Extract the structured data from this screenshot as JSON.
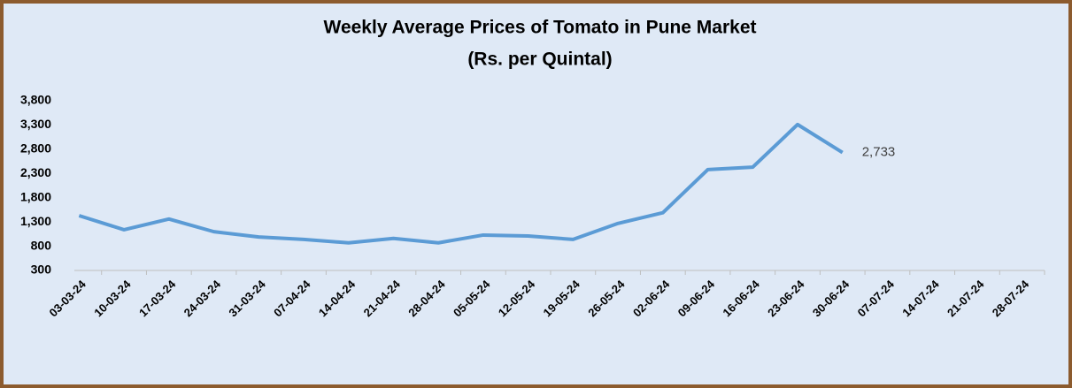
{
  "chart_data": {
    "type": "line",
    "title": "Weekly Average Prices of Tomato in Pune Market",
    "subtitle": "(Rs. per Quintal)",
    "categories": [
      "03-03-24",
      "10-03-24",
      "17-03-24",
      "24-03-24",
      "31-03-24",
      "07-04-24",
      "14-04-24",
      "21-04-24",
      "28-04-24",
      "05-05-24",
      "12-05-24",
      "19-05-24",
      "26-05-24",
      "02-06-24",
      "09-06-24",
      "16-06-24",
      "23-06-24",
      "30-06-24",
      "07-07-24",
      "14-07-24",
      "21-07-24",
      "28-07-24"
    ],
    "series": [
      {
        "name": "Tomato",
        "color": "#5b9bd5",
        "values": [
          1430,
          1140,
          1360,
          1100,
          990,
          940,
          870,
          960,
          870,
          1030,
          1010,
          940,
          1270,
          1490,
          2380,
          2430,
          3310,
          2733,
          null,
          null,
          null,
          null
        ],
        "value_labels": [
          null,
          null,
          null,
          null,
          null,
          null,
          null,
          null,
          null,
          null,
          null,
          null,
          null,
          null,
          null,
          null,
          null,
          "2,733",
          null,
          null,
          null,
          null
        ]
      }
    ],
    "ylim": [
      300,
      3800
    ],
    "yticks": [
      300,
      800,
      {
        "value": 1300,
        "label": "1,300"
      },
      {
        "value": 1800,
        "label": "1,800"
      },
      {
        "value": 2300,
        "label": "2,300"
      },
      {
        "value": 2800,
        "label": "2,800"
      },
      {
        "value": 3300,
        "label": "3,300"
      },
      {
        "value": 3800,
        "label": "3,800"
      }
    ],
    "grid": false
  }
}
